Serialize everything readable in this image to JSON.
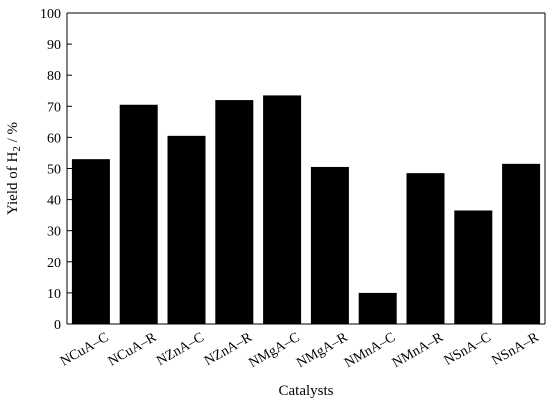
{
  "chart_data": {
    "type": "bar",
    "title": "",
    "xlabel": "Catalysts",
    "ylabel_main": "Yield of H",
    "ylabel_sub": "2",
    "ylabel_unit": " / %",
    "categories": [
      "NCuA–C",
      "NCuA–R",
      "NZnA–C",
      "NZnA–R",
      "NMgA–C",
      "NMgA–R",
      "NMnA–C",
      "NMnA–R",
      "NSnA–C",
      "NSnA–R"
    ],
    "values": [
      53,
      70.5,
      60.5,
      72,
      73.5,
      50.5,
      10,
      48.5,
      36.5,
      51.5
    ],
    "ylim": [
      0,
      100
    ],
    "yticks": [
      0,
      10,
      20,
      30,
      40,
      50,
      60,
      70,
      80,
      90,
      100
    ],
    "grid": false,
    "bar_color": "#000000"
  }
}
